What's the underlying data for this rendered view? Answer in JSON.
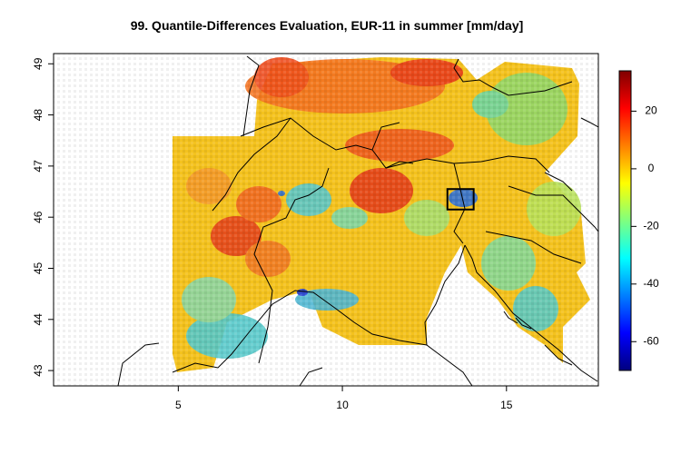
{
  "chart_data": {
    "type": "heatmap",
    "title": "99. Quantile-Differences Evaluation, EUR-11 in summer [mm/day]",
    "xlabel": "",
    "ylabel": "",
    "x_ticks": [
      5,
      10,
      15
    ],
    "y_ticks": [
      43,
      44,
      45,
      46,
      47,
      48,
      49
    ],
    "xlim": [
      1.2,
      17.8
    ],
    "ylim": [
      42.7,
      49.2
    ],
    "colorbar": {
      "ticks": [
        20,
        0,
        -20,
        -40,
        -60
      ],
      "range": [
        -70,
        34
      ],
      "colors": [
        "#00007F",
        "#0000FF",
        "#007FFF",
        "#00FFFF",
        "#7FFF7F",
        "#FFFF00",
        "#FF7F00",
        "#FF0000",
        "#7F0000"
      ]
    },
    "highlight_box": {
      "lon": [
        13.2,
        14.0
      ],
      "lat": [
        46.15,
        46.55
      ]
    },
    "grid": false,
    "legend": "right colorbar"
  }
}
